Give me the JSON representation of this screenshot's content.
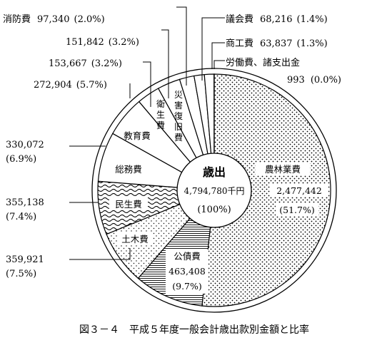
{
  "chart_data": {
    "type": "pie",
    "caption": "図３－４　平成５年度一般会計歳出款別金額と比率",
    "center": {
      "title": "歳出",
      "total": "4,794,780千円",
      "percent": "(100%)"
    },
    "slices": [
      {
        "key": "nourin",
        "name": "農林業費",
        "value": 2477442,
        "value_text": "2,477,442",
        "percent_text": "(51.7%)",
        "pattern": "dots"
      },
      {
        "key": "kousai",
        "name": "公債費",
        "value": 463408,
        "value_text": "463,408",
        "percent_text": "(9.7%)",
        "pattern": "hlines"
      },
      {
        "key": "doboku",
        "name": "土木費",
        "value": 359921,
        "value_text": "359,921",
        "percent_text": "(7.5%)",
        "pattern": "sparse-dots"
      },
      {
        "key": "minsei",
        "name": "民生費",
        "value": 355138,
        "value_text": "355,138",
        "percent_text": "(7.4%)",
        "pattern": "waves"
      },
      {
        "key": "soumu",
        "name": "総務費",
        "value": 330072,
        "value_text": "330,072",
        "percent_text": "(6.9%)",
        "pattern": "none"
      },
      {
        "key": "kyouiku",
        "name": "教育費",
        "value": 272904,
        "value_text": "272,904",
        "percent_text": "(5.7%)",
        "pattern": "none"
      },
      {
        "key": "eisei",
        "name": "衛生費",
        "value": 153667,
        "value_text": "153,667",
        "percent_text": "(3.2%)",
        "pattern": "none"
      },
      {
        "key": "saigai",
        "name": "災害復旧費",
        "value": 151842,
        "value_text": "151,842",
        "percent_text": "(3.2%)",
        "pattern": "none"
      },
      {
        "key": "shoubou",
        "name": "消防費",
        "value": 97340,
        "value_text": "97,340",
        "percent_text": "(2.0%)",
        "pattern": "none"
      },
      {
        "key": "gikai",
        "name": "議会費",
        "value": 68216,
        "value_text": "68,216",
        "percent_text": "(1.4%)",
        "pattern": "none"
      },
      {
        "key": "shoukou",
        "name": "商工費",
        "value": 63837,
        "value_text": "63,837",
        "percent_text": "(1.3%)",
        "pattern": "none"
      },
      {
        "key": "roudou",
        "name": "労働費、諸支出金",
        "value": 993,
        "value_text": "993",
        "percent_text": "(0.0%)",
        "pattern": "none"
      }
    ]
  }
}
